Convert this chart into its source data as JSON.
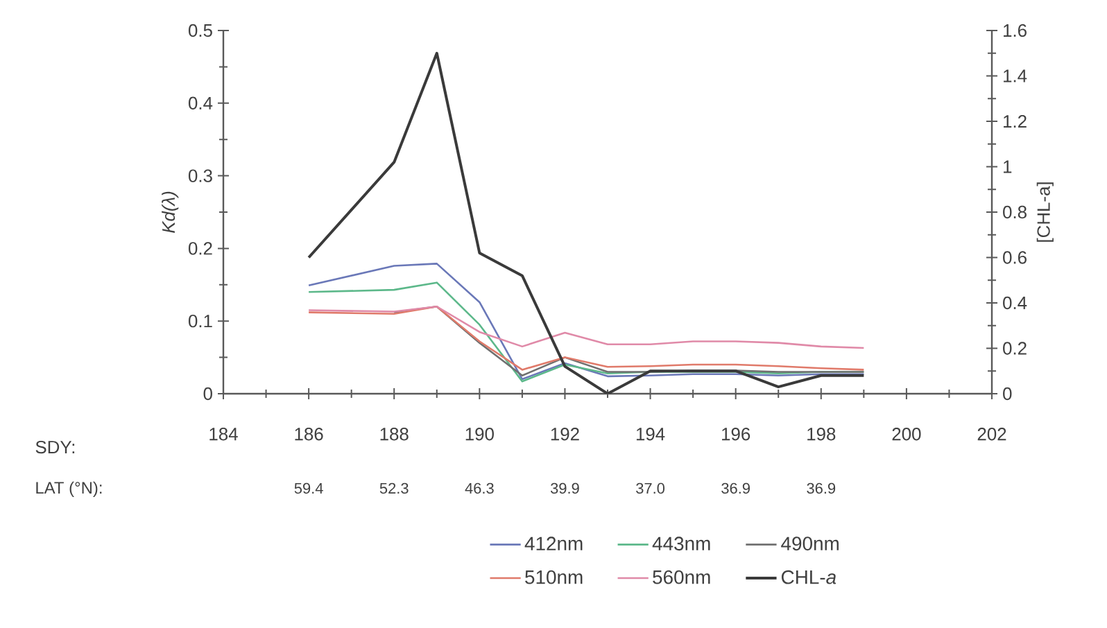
{
  "chart_data": {
    "type": "line",
    "ylabel": "Kd(λ)",
    "y2label": "[CHL-a]",
    "x": [
      186,
      188,
      189,
      190,
      191,
      192,
      193,
      194,
      195,
      196,
      197,
      198,
      199
    ],
    "xlim": [
      184,
      202
    ],
    "xticks": [
      184,
      186,
      188,
      190,
      192,
      194,
      196,
      198,
      200,
      202
    ],
    "annotations": [
      "SDY:",
      "LAT (°N):",
      "59.4",
      "52.3",
      "46.3",
      "39.9",
      "37.0",
      "36.9",
      "36.9"
    ],
    "ylim": [
      0,
      0.5
    ],
    "yticks": [
      0,
      0.1,
      0.2,
      0.3,
      0.4,
      0.5
    ],
    "y2lim": [
      0,
      1.6
    ],
    "y2ticks": [
      0,
      0.2,
      0.4,
      0.6,
      0.8,
      1,
      1.2,
      1.4,
      1.6
    ],
    "legend": "bottom",
    "series": [
      {
        "name": "412nm",
        "color": "#6a78b8",
        "values": [
          0.149,
          0.176,
          0.179,
          0.126,
          0.02,
          0.042,
          0.024,
          0.025,
          0.027,
          0.027,
          0.025,
          0.027,
          0.027
        ]
      },
      {
        "name": "443nm",
        "color": "#5cb88a",
        "values": [
          0.14,
          0.143,
          0.153,
          0.095,
          0.017,
          0.04,
          0.028,
          0.03,
          0.03,
          0.03,
          0.028,
          0.03,
          0.03
        ]
      },
      {
        "name": "490nm",
        "color": "#707070",
        "values": [
          null,
          0.112,
          0.12,
          0.07,
          0.025,
          0.05,
          0.03,
          0.03,
          0.032,
          0.032,
          0.03,
          0.03,
          0.03
        ]
      },
      {
        "name": "510nm",
        "color": "#e07a6a",
        "values": [
          0.112,
          0.11,
          0.12,
          0.072,
          0.033,
          0.05,
          0.037,
          0.038,
          0.04,
          0.04,
          0.038,
          0.035,
          0.033
        ]
      },
      {
        "name": "560nm",
        "color": "#e08aa8",
        "values": [
          0.115,
          0.113,
          0.12,
          0.085,
          0.065,
          0.084,
          0.068,
          0.068,
          0.072,
          0.072,
          0.07,
          0.065,
          0.063
        ]
      },
      {
        "name": "CHL-*a*",
        "color": "#3a3a3a",
        "axis": "y2",
        "values": [
          0.6,
          1.02,
          1.5,
          0.62,
          0.52,
          0.12,
          0,
          0.1,
          0.1,
          0.1,
          0.03,
          0.08,
          0.08
        ]
      }
    ]
  }
}
